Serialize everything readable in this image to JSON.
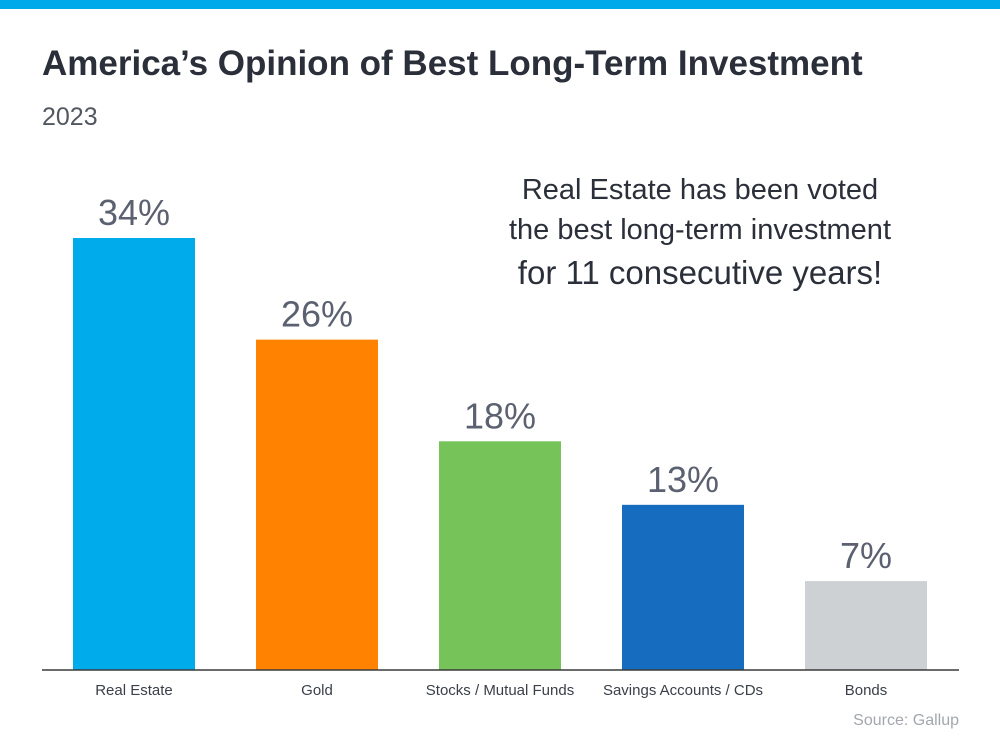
{
  "header": {
    "title": "America’s Opinion of Best Long-Term Investment",
    "subtitle": "2023"
  },
  "annotation": {
    "line1": "Real Estate has been voted",
    "line2": "the best long-term investment",
    "line3": "for 11 consecutive years!"
  },
  "footer": {
    "source": "Source: Gallup"
  },
  "colors": {
    "accent_bar": "#00a9ea"
  },
  "chart_data": {
    "type": "bar",
    "title": "America’s Opinion of Best Long-Term Investment",
    "subtitle": "2023",
    "categories": [
      "Real Estate",
      "Gold",
      "Stocks / Mutual Funds",
      "Savings Accounts / CDs",
      "Bonds"
    ],
    "values": [
      34,
      26,
      18,
      13,
      7
    ],
    "value_labels": [
      "34%",
      "26%",
      "18%",
      "13%",
      "7%"
    ],
    "colors": [
      "#00abec",
      "#ff8200",
      "#76c35a",
      "#166cbf",
      "#cdd1d4"
    ],
    "unit": "%",
    "xlabel": "",
    "ylabel": "",
    "ylim": [
      0,
      34
    ],
    "grid": false,
    "legend": "none",
    "source": "Source: Gallup"
  }
}
